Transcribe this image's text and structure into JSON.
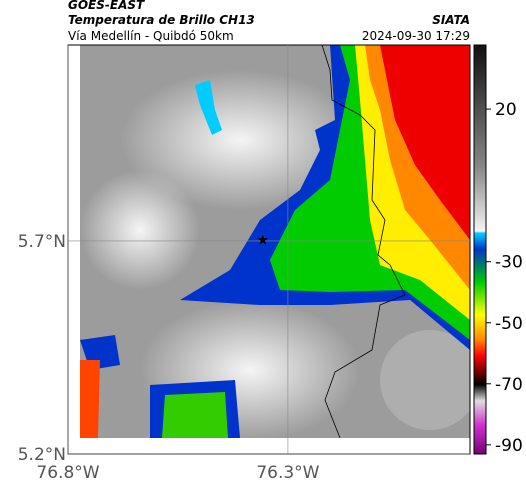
{
  "header": {
    "source": "GOES-EAST",
    "title": "Temperatura de Brillo CH13",
    "subtitle": "Vía Medellín - Quibdó 50km",
    "brand": "SIATA",
    "datetime": "2024-09-30 17:29"
  },
  "map": {
    "xlim": [
      -76.8,
      -75.886
    ],
    "ylim": [
      5.2,
      6.16
    ],
    "xticks": [
      {
        "value": -76.8,
        "label": "76.8°W"
      },
      {
        "value": -76.3,
        "label": "76.3°W"
      }
    ],
    "yticks": [
      {
        "value": 5.2,
        "label": "5.2°N"
      },
      {
        "value": 5.7,
        "label": "5.7°N"
      }
    ],
    "station": {
      "lon": -76.357,
      "lat": 5.702
    }
  },
  "colorbar": {
    "lim": [
      41,
      -93
    ],
    "ticks": [
      20,
      -30,
      -50,
      -70,
      -90
    ]
  }
}
